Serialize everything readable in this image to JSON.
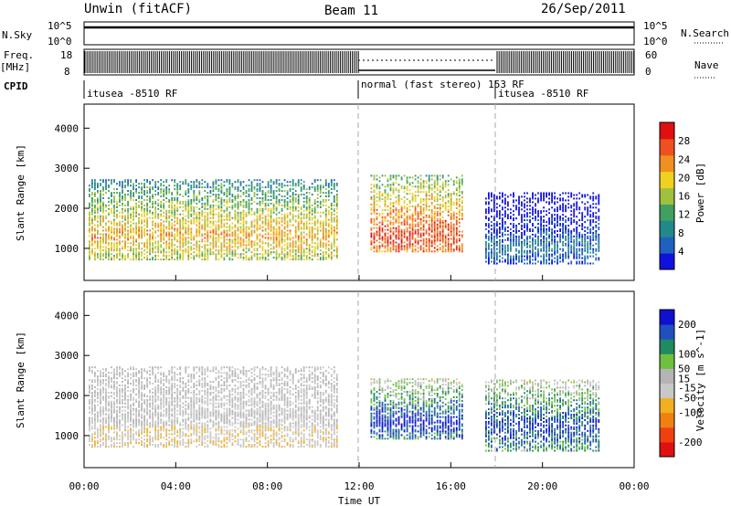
{
  "header": {
    "station": "Unwin (fitACF)",
    "beam": "Beam 11",
    "date": "26/Sep/2011"
  },
  "panels": {
    "nsky_label": "N.Sky",
    "nsky_top": "10^5",
    "nsky_bottom": "10^0",
    "nsky_right_top": "10^5",
    "nsky_right_bottom": "10^0",
    "nsearch_label": "N.Search",
    "freq_label": "Freq.",
    "freq_unit": "[MHz]",
    "freq_top": "18",
    "freq_bottom": "8",
    "nave_top": "60",
    "nave_bottom": "0",
    "nave_label": "Nave",
    "cpid_label": "CPID",
    "cpid_segments": [
      {
        "label": "itusea -8510 RF",
        "start_hour": 0
      },
      {
        "label": "normal (fast stereo) 153 RF",
        "start_hour": 12
      },
      {
        "label": "itusea -8510 RF",
        "start_hour": 18
      }
    ]
  },
  "colors": {
    "power_scale": [
      "#1010e0",
      "#2060c0",
      "#208a8a",
      "#40a060",
      "#a0c040",
      "#f0d020",
      "#f09020",
      "#f05020",
      "#e01010"
    ],
    "velocity_scale": [
      "#e01010",
      "#f04010",
      "#f08010",
      "#f0b020",
      "#c8c8c8",
      "#b4b4b4",
      "#70c040",
      "#208a60",
      "#2050c0",
      "#1010d0"
    ]
  },
  "chart_data": [
    {
      "type": "heatmap",
      "title": "",
      "xlabel": "Time UT",
      "ylabel": "Slant Range [km]",
      "x_ticks": [
        "00:00",
        "04:00",
        "08:00",
        "12:00",
        "16:00",
        "20:00",
        "00:00"
      ],
      "y_ticks": [
        1000,
        2000,
        3000,
        4000
      ],
      "xlim": [
        0,
        24
      ],
      "ylim": [
        200,
        4600
      ],
      "colorbar_label": "Power [dB]",
      "colorbar_ticks": [
        4,
        8,
        12,
        16,
        20,
        24,
        28
      ],
      "colorbar_range": [
        0,
        32
      ],
      "regions": [
        {
          "t0": 0.2,
          "t1": 11.0,
          "r0": 700,
          "r1": 2700,
          "core_r": 1300,
          "core_value": 22
        },
        {
          "t0": 12.5,
          "t1": 16.5,
          "r0": 900,
          "r1": 2800,
          "core_r": 1300,
          "core_value": 28
        },
        {
          "t0": 17.5,
          "t1": 22.5,
          "r0": 600,
          "r1": 2400,
          "core_r": 1000,
          "core_value": 8
        }
      ]
    },
    {
      "type": "heatmap",
      "title": "",
      "xlabel": "Time UT",
      "ylabel": "Slant Range [km]",
      "x_ticks": [
        "00:00",
        "04:00",
        "08:00",
        "12:00",
        "16:00",
        "20:00",
        "00:00"
      ],
      "y_ticks": [
        1000,
        2000,
        3000,
        4000
      ],
      "xlim": [
        0,
        24
      ],
      "ylim": [
        200,
        4600
      ],
      "colorbar_label": "Velocity [m s^-1]",
      "colorbar_ticks": [
        200,
        100,
        50,
        15,
        -15,
        -50,
        -100,
        -200
      ],
      "colorbar_range": [
        -250,
        250
      ],
      "regions": [
        {
          "t0": 0.2,
          "t1": 11.0,
          "r0": 700,
          "r1": 2700,
          "core_r": 1500,
          "core_value": 0
        },
        {
          "t0": 12.5,
          "t1": 16.5,
          "r0": 900,
          "r1": 2400,
          "core_r": 1300,
          "core_value": 220
        },
        {
          "t0": 17.5,
          "t1": 22.5,
          "r0": 600,
          "r1": 2400,
          "core_r": 1200,
          "core_value": 200
        }
      ]
    }
  ]
}
